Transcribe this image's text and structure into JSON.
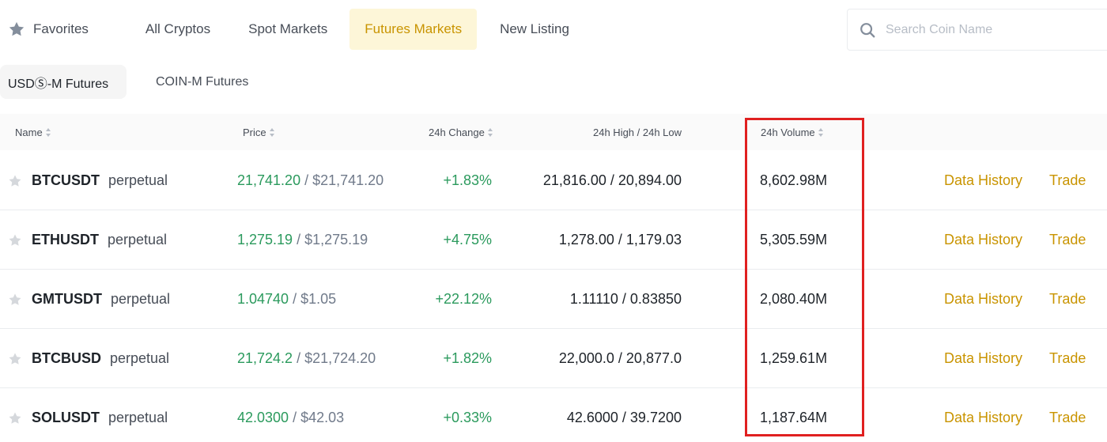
{
  "top_tabs": [
    {
      "label": "Favorites",
      "icon": "star-icon"
    },
    {
      "label": "All Cryptos"
    },
    {
      "label": "Spot Markets"
    },
    {
      "label": "Futures Markets",
      "active": true
    },
    {
      "label": "New Listing"
    }
  ],
  "search": {
    "placeholder": "Search Coin Name",
    "icon": "search-icon"
  },
  "sub_tabs": [
    {
      "label": "USDⓈ-M Futures",
      "active": true
    },
    {
      "label": "COIN-M Futures"
    }
  ],
  "table": {
    "headers": {
      "name": "Name",
      "price": "Price",
      "change": "24h Change",
      "high_low": "24h High / 24h Low",
      "volume": "24h Volume"
    },
    "rows": [
      {
        "symbol": "BTCUSDT",
        "type": "perpetual",
        "price": "21,741.20",
        "price_usd": "$21,741.20",
        "change": "+1.83%",
        "high": "21,816.00",
        "low": "20,894.00",
        "volume": "8,602.98M",
        "history": "Data History",
        "trade": "Trade"
      },
      {
        "symbol": "ETHUSDT",
        "type": "perpetual",
        "price": "1,275.19",
        "price_usd": "$1,275.19",
        "change": "+4.75%",
        "high": "1,278.00",
        "low": "1,179.03",
        "volume": "5,305.59M",
        "history": "Data History",
        "trade": "Trade"
      },
      {
        "symbol": "GMTUSDT",
        "type": "perpetual",
        "price": "1.04740",
        "price_usd": "$1.05",
        "change": "+22.12%",
        "high": "1.11110",
        "low": "0.83850",
        "volume": "2,080.40M",
        "history": "Data History",
        "trade": "Trade"
      },
      {
        "symbol": "BTCBUSD",
        "type": "perpetual",
        "price": "21,724.2",
        "price_usd": "$21,724.20",
        "change": "+1.82%",
        "high": "22,000.0",
        "low": "20,877.0",
        "volume": "1,259.61M",
        "history": "Data History",
        "trade": "Trade"
      },
      {
        "symbol": "SOLUSDT",
        "type": "perpetual",
        "price": "42.0300",
        "price_usd": "$42.03",
        "change": "+0.33%",
        "high": "42.6000",
        "low": "39.7200",
        "volume": "1,187.64M",
        "history": "Data History",
        "trade": "Trade"
      }
    ]
  },
  "colors": {
    "accent": "#c99400",
    "accent_bg": "#fdf6d8",
    "positive": "#2b9a5d",
    "highlight_border": "#e02020"
  }
}
